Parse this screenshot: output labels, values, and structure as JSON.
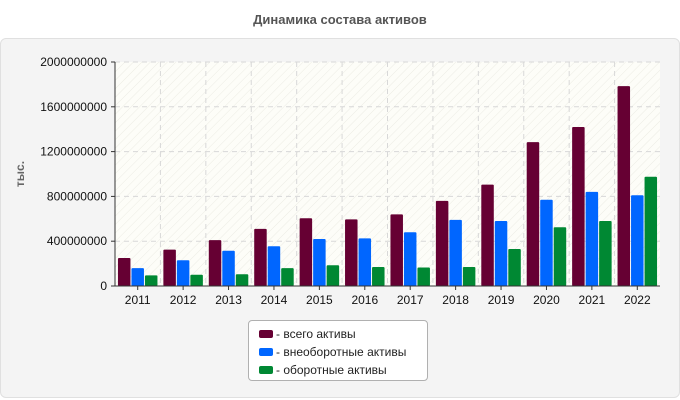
{
  "chart_data": {
    "type": "bar",
    "title": "Динамика состава активов",
    "ylabel": "тыс.",
    "xlabel": "",
    "ylim": [
      0,
      2000000000
    ],
    "yticks": [
      "0",
      "400000000",
      "800000000",
      "1200000000",
      "1600000000",
      "2000000000"
    ],
    "ytick_values": [
      0,
      400000000,
      800000000,
      1200000000,
      1600000000,
      2000000000
    ],
    "grid": true,
    "legend_position": "bottom-center",
    "categories": [
      "2011",
      "2012",
      "2013",
      "2014",
      "2015",
      "2016",
      "2017",
      "2018",
      "2019",
      "2020",
      "2021",
      "2022"
    ],
    "series": [
      {
        "name": "- всего активы",
        "color": "#660033",
        "values": [
          250000000,
          325000000,
          410000000,
          510000000,
          605000000,
          595000000,
          640000000,
          760000000,
          905000000,
          1285000000,
          1420000000,
          1785000000
        ]
      },
      {
        "name": "- внеоборотные активы",
        "color": "#0066ff",
        "values": [
          160000000,
          230000000,
          315000000,
          355000000,
          420000000,
          425000000,
          480000000,
          590000000,
          580000000,
          770000000,
          840000000,
          810000000
        ]
      },
      {
        "name": "- оборотные активы",
        "color": "#008833",
        "values": [
          95000000,
          100000000,
          105000000,
          160000000,
          185000000,
          170000000,
          165000000,
          170000000,
          330000000,
          525000000,
          580000000,
          975000000
        ]
      }
    ]
  }
}
